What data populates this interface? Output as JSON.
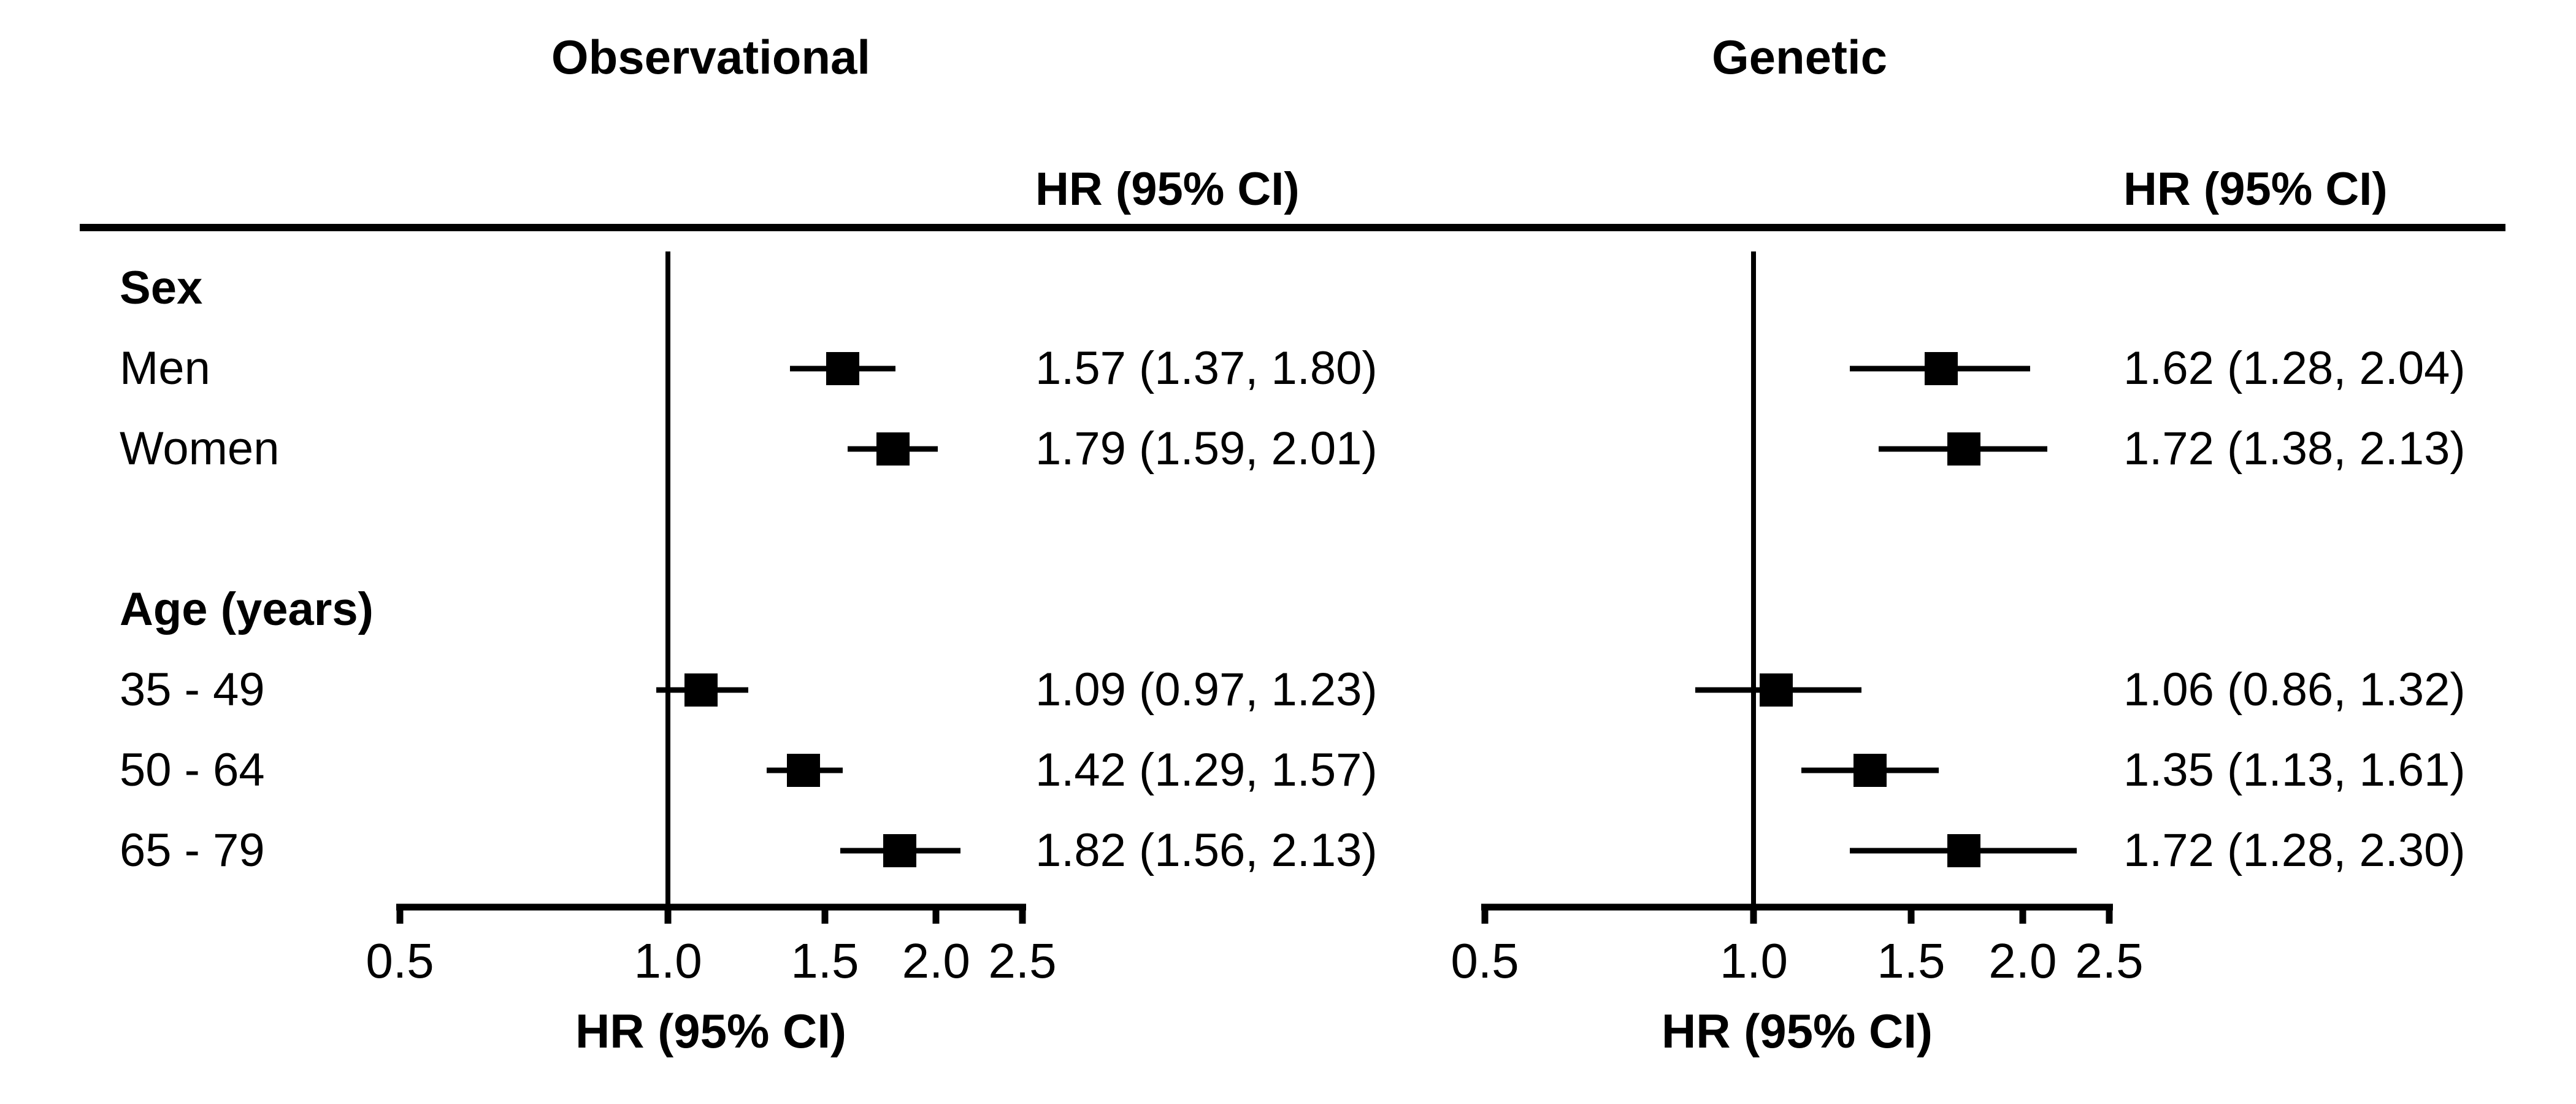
{
  "page": {
    "background": "#ffffff",
    "foreground": "#000000"
  },
  "chart_data": {
    "type": "forest",
    "scale": "log",
    "axis": {
      "min": 0.5,
      "max": 2.5
    },
    "x_ticks": [
      0.5,
      1.0,
      1.5,
      2.0,
      2.5
    ],
    "x_tick_labels": [
      "0.5",
      "1.0",
      "1.5",
      "2.0",
      "2.5"
    ],
    "ref_line": 1.0,
    "panels": [
      {
        "title": "Observational",
        "col_header": "HR (95% CI)",
        "axis_label": "HR (95% CI)"
      },
      {
        "title": "Genetic",
        "col_header": "HR (95% CI)",
        "axis_label": "HR (95% CI)"
      }
    ],
    "rows": [
      {
        "kind": "section",
        "label": "Sex"
      },
      {
        "kind": "item",
        "label": "Men",
        "estimates": [
          {
            "hr": 1.57,
            "lo": 1.37,
            "hi": 1.8,
            "text": "1.57 (1.37, 1.80)"
          },
          {
            "hr": 1.62,
            "lo": 1.28,
            "hi": 2.04,
            "text": "1.62 (1.28, 2.04)"
          }
        ]
      },
      {
        "kind": "item",
        "label": "Women",
        "estimates": [
          {
            "hr": 1.79,
            "lo": 1.59,
            "hi": 2.01,
            "text": "1.79 (1.59, 2.01)"
          },
          {
            "hr": 1.72,
            "lo": 1.38,
            "hi": 2.13,
            "text": "1.72 (1.38, 2.13)"
          }
        ]
      },
      {
        "kind": "spacer",
        "label": ""
      },
      {
        "kind": "section",
        "label": "Age (years)"
      },
      {
        "kind": "item",
        "label": "35 - 49",
        "estimates": [
          {
            "hr": 1.09,
            "lo": 0.97,
            "hi": 1.23,
            "text": "1.09 (0.97, 1.23)"
          },
          {
            "hr": 1.06,
            "lo": 0.86,
            "hi": 1.32,
            "text": "1.06 (0.86, 1.32)"
          }
        ]
      },
      {
        "kind": "item",
        "label": "50 - 64",
        "estimates": [
          {
            "hr": 1.42,
            "lo": 1.29,
            "hi": 1.57,
            "text": "1.42 (1.29, 1.57)"
          },
          {
            "hr": 1.35,
            "lo": 1.13,
            "hi": 1.61,
            "text": "1.35 (1.13, 1.61)"
          }
        ]
      },
      {
        "kind": "item",
        "label": "65 - 79",
        "estimates": [
          {
            "hr": 1.82,
            "lo": 1.56,
            "hi": 2.13,
            "text": "1.82 (1.56, 2.13)"
          },
          {
            "hr": 1.72,
            "lo": 1.28,
            "hi": 2.3,
            "text": "1.72 (1.28, 2.30)"
          }
        ]
      }
    ]
  }
}
